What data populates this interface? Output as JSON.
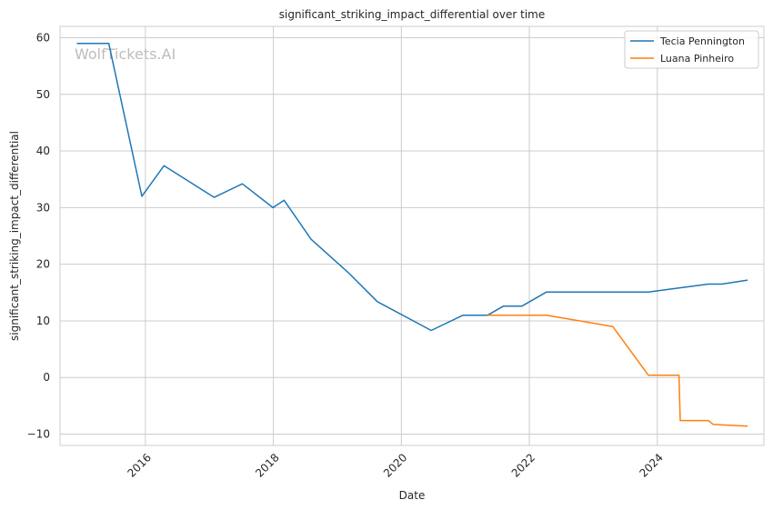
{
  "watermark": "WolfTickets.AI",
  "chart_data": {
    "type": "line",
    "title": "significant_striking_impact_differential over time",
    "xlabel": "Date",
    "ylabel": "significant_striking_impact_differential",
    "xlim": [
      "2014-09-01",
      "2025-09-01"
    ],
    "ylim": [
      -12,
      62
    ],
    "x_ticks": [
      "2016",
      "2018",
      "2020",
      "2022",
      "2024"
    ],
    "y_ticks": [
      -10,
      0,
      10,
      20,
      30,
      40,
      50,
      60
    ],
    "grid": true,
    "legend_position": "top-right",
    "series": [
      {
        "name": "Tecia Pennington",
        "color": "#1f77b4",
        "points": [
          [
            "2014-12-06",
            59.0
          ],
          [
            "2015-06-06",
            59.0
          ],
          [
            "2015-12-12",
            32.0
          ],
          [
            "2016-04-16",
            37.4
          ],
          [
            "2017-01-28",
            31.8
          ],
          [
            "2017-07-08",
            34.2
          ],
          [
            "2017-12-30",
            30.0
          ],
          [
            "2018-03-03",
            31.3
          ],
          [
            "2018-08-04",
            24.4
          ],
          [
            "2019-03-02",
            18.6
          ],
          [
            "2019-08-17",
            13.4
          ],
          [
            "2020-06-20",
            8.3
          ],
          [
            "2020-12-19",
            11.0
          ],
          [
            "2021-05-08",
            11.0
          ],
          [
            "2021-08-07",
            12.6
          ],
          [
            "2021-11-20",
            12.6
          ],
          [
            "2022-04-09",
            15.1
          ],
          [
            "2023-11-11",
            15.1
          ],
          [
            "2024-05-04",
            15.8
          ],
          [
            "2024-10-19",
            16.5
          ],
          [
            "2025-01-04",
            16.5
          ],
          [
            "2025-05-31",
            17.2
          ]
        ]
      },
      {
        "name": "Luana Pinheiro",
        "color": "#ff7f0e",
        "points": [
          [
            "2021-05-08",
            11.0
          ],
          [
            "2022-04-09",
            11.0
          ],
          [
            "2023-04-22",
            9.0
          ],
          [
            "2023-11-11",
            0.4
          ],
          [
            "2024-05-04",
            0.4
          ],
          [
            "2024-05-11",
            -7.6
          ],
          [
            "2024-10-19",
            -7.6
          ],
          [
            "2024-11-16",
            -8.3
          ],
          [
            "2025-05-31",
            -8.6
          ]
        ]
      }
    ]
  }
}
